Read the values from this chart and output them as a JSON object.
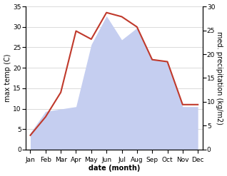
{
  "months": [
    "Jan",
    "Feb",
    "Mar",
    "Apr",
    "May",
    "Jun",
    "Jul",
    "Aug",
    "Sep",
    "Oct",
    "Nov",
    "Dec"
  ],
  "temp": [
    3.5,
    8.0,
    14.0,
    29.0,
    27.0,
    33.5,
    32.5,
    30.0,
    22.0,
    21.5,
    11.0,
    11.0
  ],
  "precip": [
    3.5,
    8.0,
    8.5,
    9.0,
    22.0,
    28.0,
    23.0,
    25.5,
    19.0,
    18.5,
    9.0,
    9.0
  ],
  "temp_color": "#c0392b",
  "precip_fill_color": "#c5cef0",
  "bg_color": "#ffffff",
  "ylabel_left": "max temp (C)",
  "ylabel_right": "med. precipitation (kg/m2)",
  "xlabel": "date (month)",
  "ylim_left": [
    0,
    35
  ],
  "ylim_right": [
    0,
    30
  ],
  "yticks_left": [
    0,
    5,
    10,
    15,
    20,
    25,
    30,
    35
  ],
  "yticks_right": [
    0,
    5,
    10,
    15,
    20,
    25,
    30
  ],
  "label_fontsize": 7,
  "tick_fontsize": 6.5
}
